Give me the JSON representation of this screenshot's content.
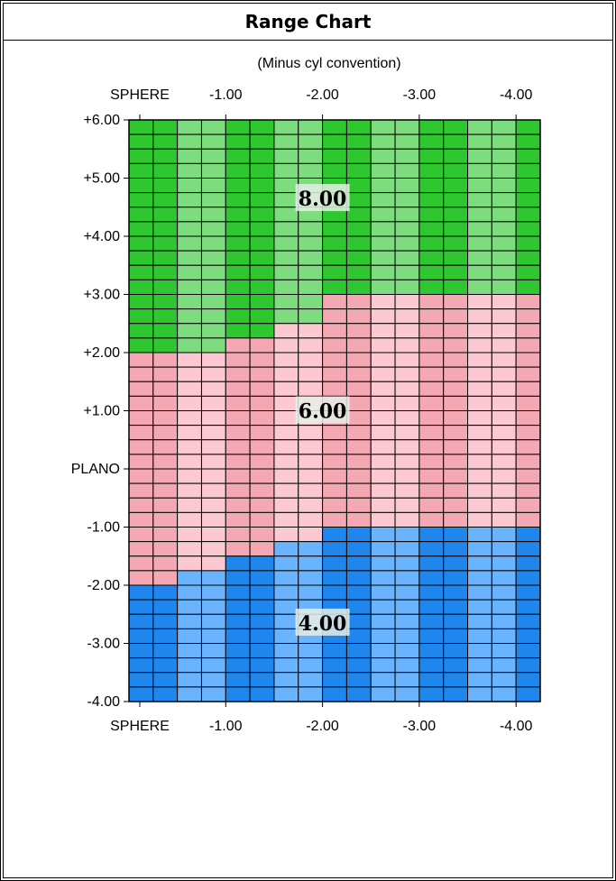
{
  "title": "Range Chart",
  "chart_data": {
    "type": "heatmap",
    "subtitle": "(Minus cyl convention)",
    "x_axis_title": "SPHERE",
    "x_ticks": [
      "-1.00",
      "-2.00",
      "-3.00",
      "-4.00"
    ],
    "y_ticks": [
      "+6.00",
      "+5.00",
      "+4.00",
      "+3.00",
      "+2.00",
      "+1.00",
      "PLANO",
      "-1.00",
      "-2.00",
      "-3.00",
      "-4.00"
    ],
    "cyl_range": [
      0,
      -4.25
    ],
    "sphere_range": [
      6.0,
      -4.0
    ],
    "cyl_step": 0.25,
    "sphere_step": 0.25,
    "regions": [
      {
        "label": "8.00",
        "colors": [
          "#2fc72f",
          "#7ddc7d"
        ],
        "boundary_sphere_by_cyl": [
          2.0,
          2.0,
          2.0,
          2.0,
          2.25,
          2.25,
          2.5,
          2.5,
          3.0,
          3.0,
          3.0,
          3.0,
          3.0,
          3.0,
          3.0,
          3.0,
          3.0
        ]
      },
      {
        "label": "6.00",
        "colors": [
          "#f4a8b4",
          "#fcc8d2"
        ]
      },
      {
        "label": "4.00",
        "colors": [
          "#1f86ee",
          "#6ab4ff"
        ],
        "boundary_sphere_by_cyl": [
          -2.0,
          -2.0,
          -1.75,
          -1.75,
          -1.5,
          -1.5,
          -1.25,
          -1.25,
          -1.0,
          -1.0,
          -1.0,
          -1.0,
          -1.0,
          -1.0,
          -1.0,
          -1.0,
          -1.0
        ]
      }
    ]
  }
}
